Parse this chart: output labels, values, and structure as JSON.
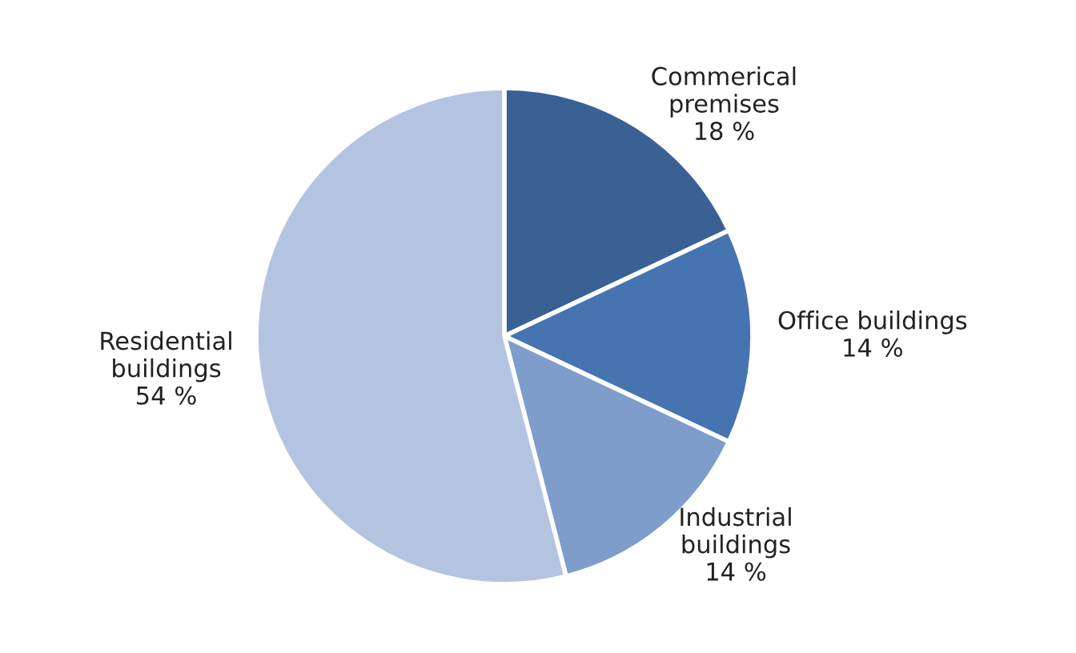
{
  "chart_data": {
    "type": "pie",
    "categories": [
      "Commerical\npremises",
      "Office buildings",
      "Industrial\nbuildings",
      "Residential\nbuildings"
    ],
    "values": [
      18,
      14,
      14,
      54
    ],
    "value_labels": [
      "18 %",
      "14 %",
      "14 %",
      "54 %"
    ],
    "colors": [
      "#3a6194",
      "#4674b1",
      "#7f9dca",
      "#b4c4e0"
    ],
    "legend": false
  }
}
